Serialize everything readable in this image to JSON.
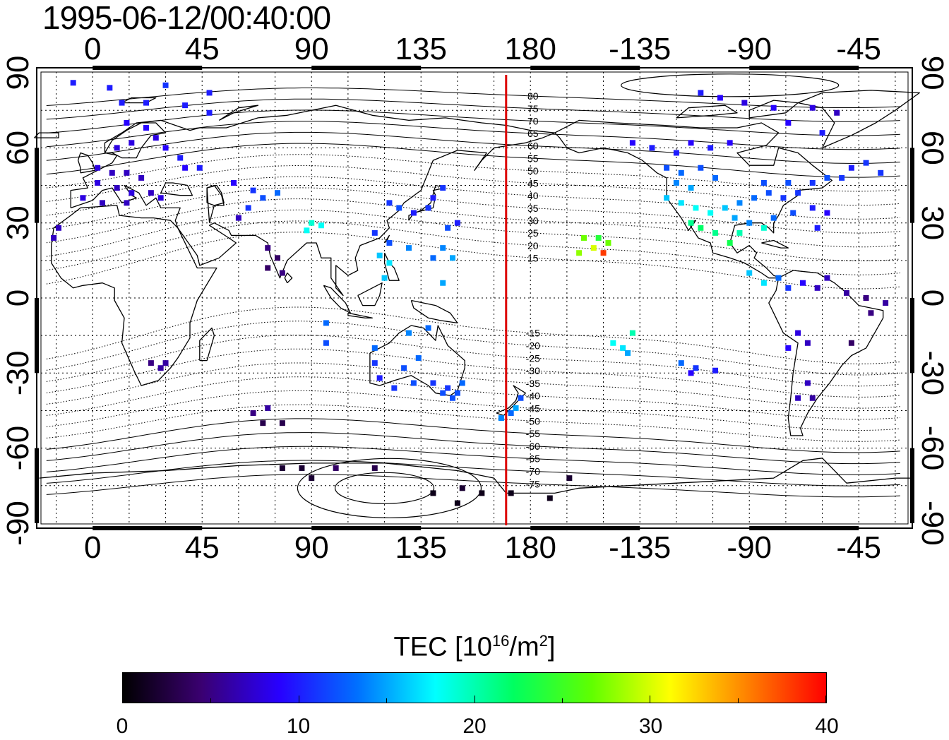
{
  "timestamp": "1995-06-12/00:40:00",
  "lon_ticks": [
    "0",
    "45",
    "90",
    "135",
    "180",
    "-135",
    "-90",
    "-45"
  ],
  "lon_tick_values": [
    0,
    45,
    90,
    135,
    180,
    225,
    270,
    315
  ],
  "lat_ticks": [
    "90",
    "60",
    "30",
    "0",
    "-30",
    "-60",
    "-90"
  ],
  "lat_tick_values": [
    90,
    60,
    30,
    0,
    -30,
    -60,
    -90
  ],
  "contour_labels_north": [
    "80",
    "75",
    "70",
    "65",
    "60",
    "55",
    "50",
    "45",
    "40",
    "35",
    "30",
    "25",
    "20",
    "15"
  ],
  "contour_labels_south": [
    "-15",
    "-20",
    "-25",
    "-30",
    "-35",
    "-40",
    "-45",
    "-50",
    "-55",
    "-60",
    "-65",
    "-70",
    "-75"
  ],
  "red_line_lon": 170,
  "colorbar": {
    "label_main": "TEC  [10",
    "label_sup1": "16",
    "label_mid": "/m",
    "label_sup2": "2",
    "label_end": "]",
    "min": 0,
    "max": 40,
    "ticks": [
      "0",
      "10",
      "20",
      "30",
      "40"
    ],
    "tick_values": [
      0,
      10,
      20,
      30,
      40
    ],
    "colors": [
      "#000000",
      "#3a0070",
      "#2800ff",
      "#0070ff",
      "#00ffff",
      "#00ff60",
      "#60ff00",
      "#ffff00",
      "#ff8000",
      "#ff0000"
    ]
  },
  "map": {
    "lon_range": [
      -23,
      337
    ],
    "lat_range": [
      -92,
      92
    ],
    "grid": true,
    "stations": [
      {
        "lon": -8,
        "lat": 86,
        "tec": 10
      },
      {
        "lon": 7,
        "lat": 84,
        "tec": 10
      },
      {
        "lon": 30,
        "lat": 85,
        "tec": 11
      },
      {
        "lon": 48,
        "lat": 82,
        "tec": 10
      },
      {
        "lon": 12,
        "lat": 78,
        "tec": 10
      },
      {
        "lon": 22,
        "lat": 78,
        "tec": 10
      },
      {
        "lon": 38,
        "lat": 77,
        "tec": 10
      },
      {
        "lon": 48,
        "lat": 74,
        "tec": 10
      },
      {
        "lon": 14,
        "lat": 70,
        "tec": 9
      },
      {
        "lon": 22,
        "lat": 68,
        "tec": 9
      },
      {
        "lon": 16,
        "lat": 62,
        "tec": 8
      },
      {
        "lon": 26,
        "lat": 64,
        "tec": 8
      },
      {
        "lon": 10,
        "lat": 60,
        "tec": 8
      },
      {
        "lon": 30,
        "lat": 60,
        "tec": 9
      },
      {
        "lon": 36,
        "lat": 56,
        "tec": 10
      },
      {
        "lon": 38,
        "lat": 52,
        "tec": 9
      },
      {
        "lon": 2,
        "lat": 52,
        "tec": 8
      },
      {
        "lon": 8,
        "lat": 50,
        "tec": 7
      },
      {
        "lon": 14,
        "lat": 50,
        "tec": 7
      },
      {
        "lon": 20,
        "lat": 48,
        "tec": 7
      },
      {
        "lon": 2,
        "lat": 46,
        "tec": 8
      },
      {
        "lon": 10,
        "lat": 44,
        "tec": 7
      },
      {
        "lon": 16,
        "lat": 42,
        "tec": 8
      },
      {
        "lon": 24,
        "lat": 42,
        "tec": 7
      },
      {
        "lon": -4,
        "lat": 40,
        "tec": 8
      },
      {
        "lon": 4,
        "lat": 38,
        "tec": 7
      },
      {
        "lon": 14,
        "lat": 38,
        "tec": 7
      },
      {
        "lon": 28,
        "lat": 40,
        "tec": 8
      },
      {
        "lon": -14,
        "lat": 28,
        "tec": 7
      },
      {
        "lon": -16,
        "lat": 24,
        "tec": 7
      },
      {
        "lon": 44,
        "lat": 52,
        "tec": 10
      },
      {
        "lon": 58,
        "lat": 46,
        "tec": 9
      },
      {
        "lon": 66,
        "lat": 43,
        "tec": 11
      },
      {
        "lon": 70,
        "lat": 40,
        "tec": 12
      },
      {
        "lon": 76,
        "lat": 42,
        "tec": 13
      },
      {
        "lon": 64,
        "lat": 36,
        "tec": 11
      },
      {
        "lon": 60,
        "lat": 32,
        "tec": 7
      },
      {
        "lon": 72,
        "lat": 20,
        "tec": 5
      },
      {
        "lon": 76,
        "lat": 16,
        "tec": 4
      },
      {
        "lon": 78,
        "lat": 10,
        "tec": 5
      },
      {
        "lon": 72,
        "lat": 12,
        "tec": 4
      },
      {
        "lon": 90,
        "lat": 30,
        "tec": 19
      },
      {
        "lon": 94,
        "lat": 29,
        "tec": 18
      },
      {
        "lon": 88,
        "lat": 27,
        "tec": 18
      },
      {
        "lon": 116,
        "lat": 26,
        "tec": 11
      },
      {
        "lon": 122,
        "lat": 22,
        "tec": 12
      },
      {
        "lon": 118,
        "lat": 17,
        "tec": 16
      },
      {
        "lon": 122,
        "lat": 14,
        "tec": 17
      },
      {
        "lon": 120,
        "lat": 8,
        "tec": 16
      },
      {
        "lon": 130,
        "lat": 20,
        "tec": 14
      },
      {
        "lon": 122,
        "lat": 38,
        "tec": 11
      },
      {
        "lon": 126,
        "lat": 36,
        "tec": 12
      },
      {
        "lon": 132,
        "lat": 34,
        "tec": 10
      },
      {
        "lon": 138,
        "lat": 36,
        "tec": 11
      },
      {
        "lon": 140,
        "lat": 40,
        "tec": 10
      },
      {
        "lon": 144,
        "lat": 44,
        "tec": 11
      },
      {
        "lon": 150,
        "lat": 30,
        "tec": 10
      },
      {
        "lon": 146,
        "lat": 28,
        "tec": 12
      },
      {
        "lon": 144,
        "lat": 20,
        "tec": 14
      },
      {
        "lon": 148,
        "lat": 16,
        "tec": 15
      },
      {
        "lon": 140,
        "lat": 16,
        "tec": 13
      },
      {
        "lon": 144,
        "lat": 6,
        "tec": 15
      },
      {
        "lon": 96,
        "lat": -10,
        "tec": 13
      },
      {
        "lon": 96,
        "lat": -18,
        "tec": 12
      },
      {
        "lon": 116,
        "lat": -20,
        "tec": 13
      },
      {
        "lon": 116,
        "lat": -26,
        "tec": 11
      },
      {
        "lon": 118,
        "lat": -32,
        "tec": 10
      },
      {
        "lon": 128,
        "lat": -28,
        "tec": 12
      },
      {
        "lon": 134,
        "lat": -24,
        "tec": 13
      },
      {
        "lon": 130,
        "lat": -14,
        "tec": 14
      },
      {
        "lon": 138,
        "lat": -12,
        "tec": 13
      },
      {
        "lon": 124,
        "lat": -36,
        "tec": 11
      },
      {
        "lon": 132,
        "lat": -34,
        "tec": 12
      },
      {
        "lon": 140,
        "lat": -34,
        "tec": 11
      },
      {
        "lon": 146,
        "lat": -36,
        "tec": 11
      },
      {
        "lon": 150,
        "lat": -38,
        "tec": 12
      },
      {
        "lon": 152,
        "lat": -34,
        "tec": 13
      },
      {
        "lon": 148,
        "lat": -40,
        "tec": 12
      },
      {
        "lon": 144,
        "lat": -38,
        "tec": 12
      },
      {
        "lon": 172,
        "lat": -46,
        "tec": 13
      },
      {
        "lon": 174,
        "lat": -44,
        "tec": 15
      },
      {
        "lon": 168,
        "lat": -48,
        "tec": 14
      },
      {
        "lon": 176,
        "lat": -40,
        "tec": 12
      },
      {
        "lon": 24,
        "lat": -26,
        "tec": 5
      },
      {
        "lon": 28,
        "lat": -28,
        "tec": 6
      },
      {
        "lon": 30,
        "lat": -26,
        "tec": 6
      },
      {
        "lon": 66,
        "lat": -46,
        "tec": 5
      },
      {
        "lon": 72,
        "lat": -44,
        "tec": 6
      },
      {
        "lon": 70,
        "lat": -50,
        "tec": 3
      },
      {
        "lon": 78,
        "lat": -50,
        "tec": 3
      },
      {
        "lon": 78,
        "lat": -68,
        "tec": 2
      },
      {
        "lon": 86,
        "lat": -68,
        "tec": 2
      },
      {
        "lon": 100,
        "lat": -68,
        "tec": 4
      },
      {
        "lon": 116,
        "lat": -68,
        "tec": 3
      },
      {
        "lon": 90,
        "lat": -72,
        "tec": 2
      },
      {
        "lon": 140,
        "lat": -78,
        "tec": 1
      },
      {
        "lon": 152,
        "lat": -76,
        "tec": 2
      },
      {
        "lon": 160,
        "lat": -78,
        "tec": 1
      },
      {
        "lon": 172,
        "lat": -78,
        "tec": 1
      },
      {
        "lon": 188,
        "lat": -80,
        "tec": 1
      },
      {
        "lon": 196,
        "lat": -72,
        "tec": 2
      },
      {
        "lon": 150,
        "lat": -82,
        "tec": 1
      },
      {
        "lon": 202,
        "lat": 24,
        "tec": 27
      },
      {
        "lon": 206,
        "lat": 20,
        "tec": 30
      },
      {
        "lon": 210,
        "lat": 18,
        "tec": 38
      },
      {
        "lon": 200,
        "lat": 18,
        "tec": 28
      },
      {
        "lon": 212,
        "lat": 22,
        "tec": 27
      },
      {
        "lon": 208,
        "lat": 24,
        "tec": 24
      },
      {
        "lon": 214,
        "lat": -18,
        "tec": 18
      },
      {
        "lon": 218,
        "lat": -20,
        "tec": 17
      },
      {
        "lon": 222,
        "lat": -14,
        "tec": 20
      },
      {
        "lon": 220,
        "lat": -22,
        "tec": 15
      },
      {
        "lon": 242,
        "lat": -26,
        "tec": 13
      },
      {
        "lon": 248,
        "lat": -28,
        "tec": 11
      },
      {
        "lon": 256,
        "lat": -29,
        "tec": 10
      },
      {
        "lon": 246,
        "lat": -30,
        "tec": 9
      },
      {
        "lon": 222,
        "lat": 62,
        "tec": 9
      },
      {
        "lon": 230,
        "lat": 60,
        "tec": 10
      },
      {
        "lon": 240,
        "lat": 58,
        "tec": 10
      },
      {
        "lon": 246,
        "lat": 62,
        "tec": 9
      },
      {
        "lon": 254,
        "lat": 60,
        "tec": 10
      },
      {
        "lon": 262,
        "lat": 62,
        "tec": 9
      },
      {
        "lon": 236,
        "lat": 52,
        "tec": 12
      },
      {
        "lon": 242,
        "lat": 50,
        "tec": 13
      },
      {
        "lon": 250,
        "lat": 52,
        "tec": 12
      },
      {
        "lon": 256,
        "lat": 48,
        "tec": 13
      },
      {
        "lon": 240,
        "lat": 46,
        "tec": 14
      },
      {
        "lon": 246,
        "lat": 44,
        "tec": 15
      },
      {
        "lon": 236,
        "lat": 40,
        "tec": 16
      },
      {
        "lon": 242,
        "lat": 38,
        "tec": 17
      },
      {
        "lon": 248,
        "lat": 36,
        "tec": 18
      },
      {
        "lon": 254,
        "lat": 34,
        "tec": 18
      },
      {
        "lon": 260,
        "lat": 36,
        "tec": 16
      },
      {
        "lon": 266,
        "lat": 38,
        "tec": 14
      },
      {
        "lon": 272,
        "lat": 40,
        "tec": 13
      },
      {
        "lon": 278,
        "lat": 42,
        "tec": 12
      },
      {
        "lon": 284,
        "lat": 40,
        "tec": 11
      },
      {
        "lon": 290,
        "lat": 42,
        "tec": 11
      },
      {
        "lon": 286,
        "lat": 46,
        "tec": 12
      },
      {
        "lon": 276,
        "lat": 46,
        "tec": 12
      },
      {
        "lon": 296,
        "lat": 46,
        "tec": 11
      },
      {
        "lon": 302,
        "lat": 48,
        "tec": 12
      },
      {
        "lon": 308,
        "lat": 48,
        "tec": 11
      },
      {
        "lon": 312,
        "lat": 52,
        "tec": 10
      },
      {
        "lon": 264,
        "lat": 32,
        "tec": 15
      },
      {
        "lon": 270,
        "lat": 30,
        "tec": 14
      },
      {
        "lon": 280,
        "lat": 32,
        "tec": 13
      },
      {
        "lon": 288,
        "lat": 34,
        "tec": 12
      },
      {
        "lon": 296,
        "lat": 36,
        "tec": 10
      },
      {
        "lon": 302,
        "lat": 34,
        "tec": 9
      },
      {
        "lon": 298,
        "lat": 28,
        "tec": 10
      },
      {
        "lon": 246,
        "lat": 30,
        "tec": 21
      },
      {
        "lon": 250,
        "lat": 28,
        "tec": 22
      },
      {
        "lon": 256,
        "lat": 26,
        "tec": 21
      },
      {
        "lon": 262,
        "lat": 22,
        "tec": 23
      },
      {
        "lon": 276,
        "lat": 28,
        "tec": 19
      },
      {
        "lon": 266,
        "lat": 26,
        "tec": 20
      },
      {
        "lon": 270,
        "lat": 10,
        "tec": 16
      },
      {
        "lon": 276,
        "lat": 6,
        "tec": 17
      },
      {
        "lon": 282,
        "lat": 8,
        "tec": 13
      },
      {
        "lon": 286,
        "lat": 4,
        "tec": 11
      },
      {
        "lon": 292,
        "lat": 6,
        "tec": 9
      },
      {
        "lon": 298,
        "lat": 4,
        "tec": 7
      },
      {
        "lon": 302,
        "lat": 8,
        "tec": 7
      },
      {
        "lon": 310,
        "lat": 2,
        "tec": 6
      },
      {
        "lon": 318,
        "lat": 0,
        "tec": 5
      },
      {
        "lon": 326,
        "lat": -2,
        "tec": 6
      },
      {
        "lon": 320,
        "lat": -6,
        "tec": 5
      },
      {
        "lon": 312,
        "lat": -18,
        "tec": 4
      },
      {
        "lon": 290,
        "lat": -14,
        "tec": 8
      },
      {
        "lon": 294,
        "lat": -18,
        "tec": 7
      },
      {
        "lon": 286,
        "lat": -20,
        "tec": 9
      },
      {
        "lon": 294,
        "lat": -34,
        "tec": 7
      },
      {
        "lon": 290,
        "lat": -40,
        "tec": 7
      },
      {
        "lon": 296,
        "lat": -40,
        "tec": 6
      },
      {
        "lon": 250,
        "lat": 82,
        "tec": 10
      },
      {
        "lon": 258,
        "lat": 80,
        "tec": 9
      },
      {
        "lon": 268,
        "lat": 78,
        "tec": 8
      },
      {
        "lon": 280,
        "lat": 76,
        "tec": 9
      },
      {
        "lon": 296,
        "lat": 76,
        "tec": 8
      },
      {
        "lon": 306,
        "lat": 74,
        "tec": 7
      },
      {
        "lon": 286,
        "lat": 70,
        "tec": 9
      },
      {
        "lon": 300,
        "lat": 66,
        "tec": 10
      },
      {
        "lon": 318,
        "lat": 54,
        "tec": 11
      },
      {
        "lon": 324,
        "lat": 50,
        "tec": 11
      }
    ]
  }
}
